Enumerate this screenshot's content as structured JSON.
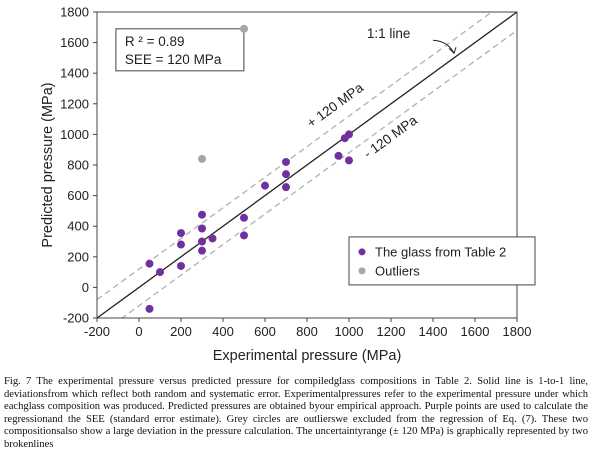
{
  "chart_data": {
    "type": "scatter",
    "xlabel": "Experimental pressure (MPa)",
    "ylabel": "Predicted pressure (MPa)",
    "xlim": [
      -200,
      1800
    ],
    "ylim": [
      -200,
      1800
    ],
    "xticks": [
      -200,
      0,
      200,
      400,
      600,
      800,
      1000,
      1200,
      1400,
      1600,
      1800
    ],
    "yticks": [
      -200,
      0,
      200,
      400,
      600,
      800,
      1000,
      1200,
      1400,
      1600,
      1800
    ],
    "grid": false,
    "legend_position": "bottom-right",
    "stats": {
      "r2": "R ² = 0.89",
      "see": "SEE = 120 MPa"
    },
    "annotations": {
      "one_to_one": "1:1 line",
      "plus_band": "+ 120 MPa",
      "minus_band": "- 120 MPa"
    },
    "lines": [
      {
        "role": "1:1",
        "offset": 0,
        "style": "solid"
      },
      {
        "role": "upper",
        "offset": 120,
        "style": "dashed"
      },
      {
        "role": "lower",
        "offset": -120,
        "style": "dashed"
      }
    ],
    "series": [
      {
        "name": "The glass from Table 2",
        "color": "#7030a0",
        "points": [
          [
            50,
            -140
          ],
          [
            50,
            155
          ],
          [
            100,
            100
          ],
          [
            200,
            140
          ],
          [
            200,
            280
          ],
          [
            200,
            355
          ],
          [
            300,
            240
          ],
          [
            300,
            300
          ],
          [
            300,
            385
          ],
          [
            300,
            475
          ],
          [
            350,
            320
          ],
          [
            500,
            340
          ],
          [
            500,
            455
          ],
          [
            600,
            665
          ],
          [
            700,
            655
          ],
          [
            700,
            740
          ],
          [
            700,
            820
          ],
          [
            950,
            860
          ],
          [
            980,
            975
          ],
          [
            1000,
            830
          ],
          [
            1000,
            1000
          ]
        ]
      },
      {
        "name": "Outliers",
        "color": "#a6a6a6",
        "points": [
          [
            300,
            840
          ],
          [
            500,
            1690
          ]
        ]
      }
    ]
  },
  "caption": "Fig. 7 The experimental pressure versus predicted pressure for compiledglass compositions in Table 2. Solid line is 1-to-1 line, deviationsfrom which reflect both random and systematic error. Experimentalpressures refer to the experimental pressure under which eachglass composition was produced. Predicted pressures are obtained byour empirical approach. Purple points are used to calculate the regressionand the SEE (standard error estimate). Grey circles are outlierswe excluded from the regression of Eq. (7). These two compositionsalso show a large deviation in the pressure calculation. The uncertaintyrange (± 120 MPa) is graphically represented by two brokenlines"
}
